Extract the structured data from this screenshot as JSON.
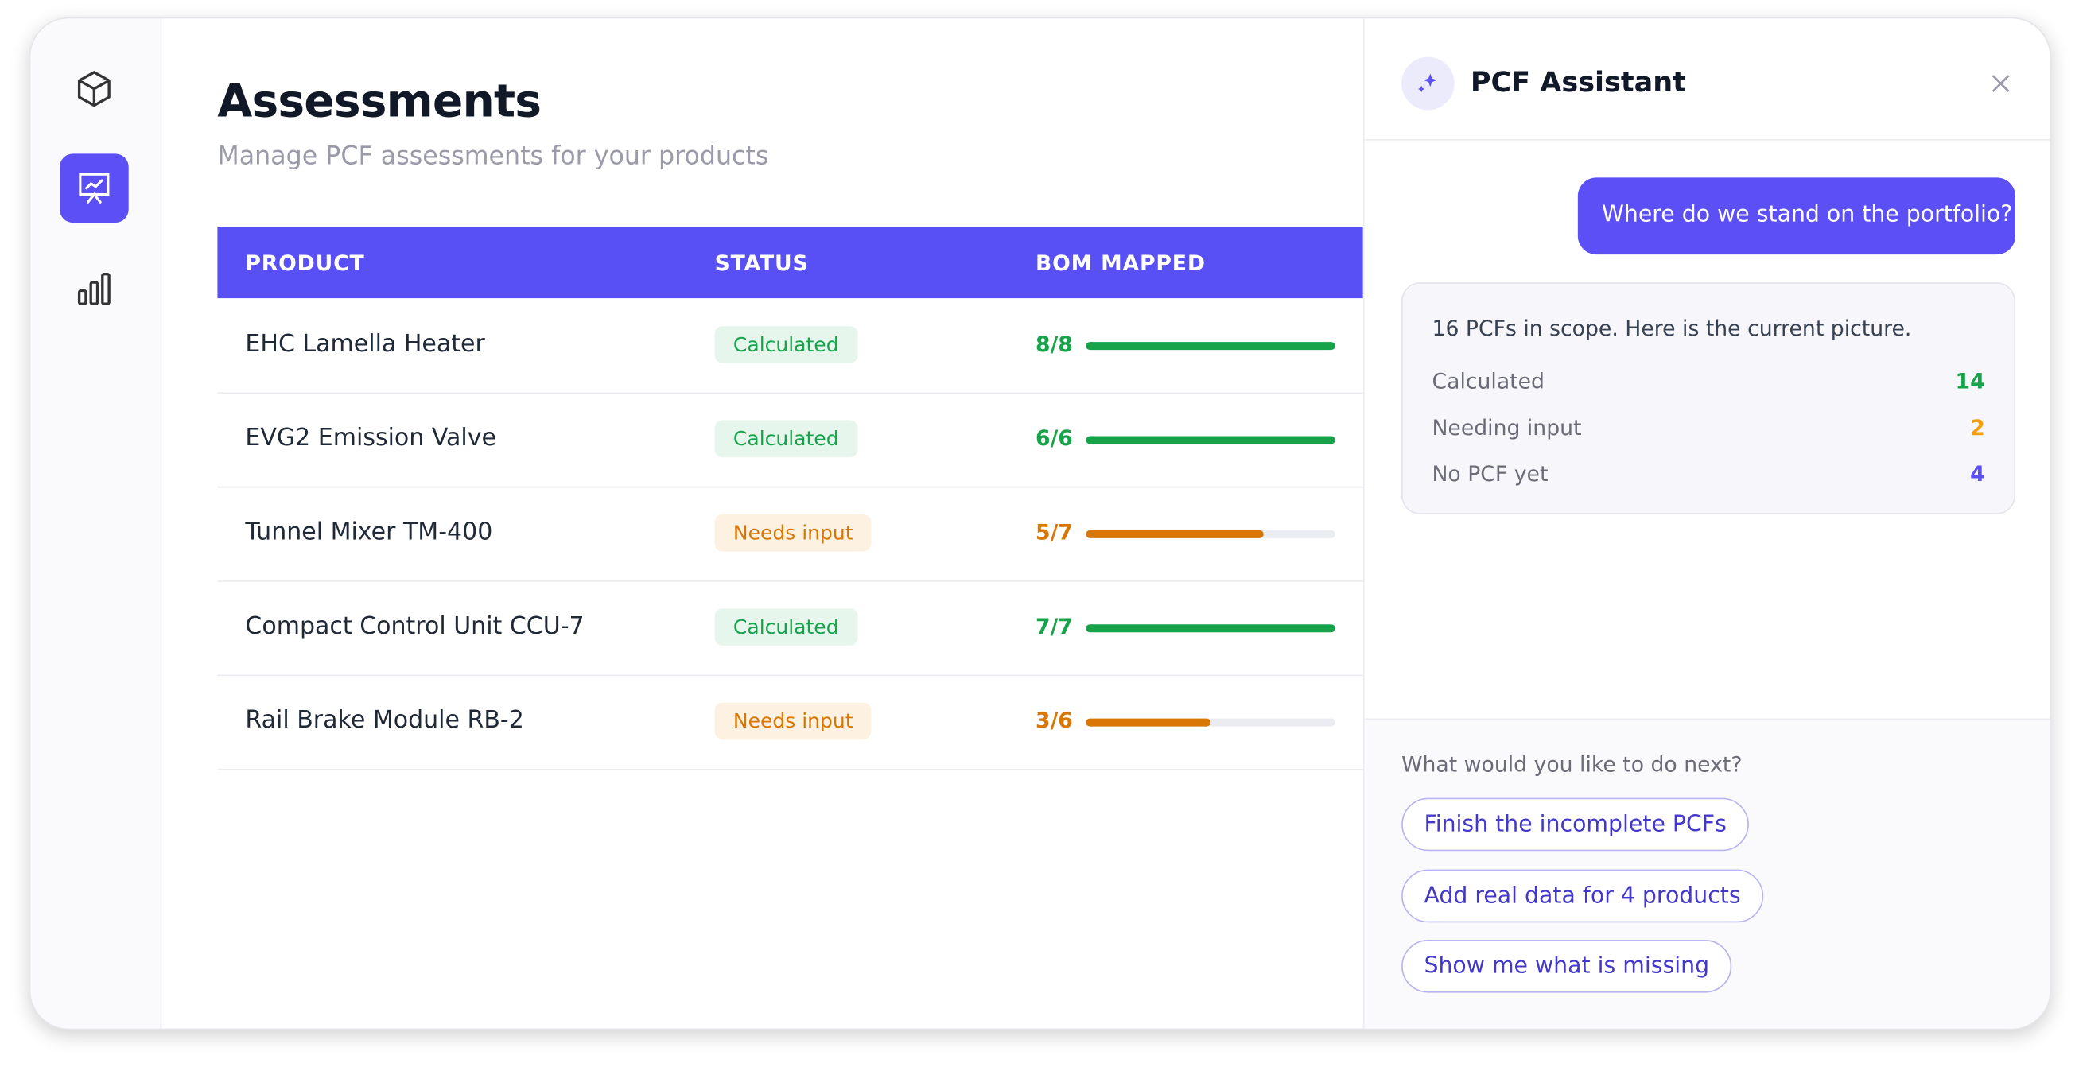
{
  "page": {
    "title": "Assessments",
    "subtitle": "Manage PCF assessments for your products"
  },
  "table": {
    "columns": [
      "PRODUCT",
      "STATUS",
      "BOM MAPPED"
    ],
    "rows": [
      {
        "product": "EHC Lamella Heater",
        "status": "Calculated",
        "bom": "8/8",
        "color": "#16a34a",
        "badge": "#e6f6ec"
      },
      {
        "product": "EVG2 Emission Valve",
        "status": "Calculated",
        "bom": "6/6",
        "color": "#16a34a",
        "badge": "#e6f6ec"
      },
      {
        "product": "Tunnel Mixer TM-400",
        "status": "Needs input",
        "bom": "5/7",
        "color": "#d97706",
        "badge": "#fdf1e2"
      },
      {
        "product": "Compact Control Unit CCU-7",
        "status": "Calculated",
        "bom": "7/7",
        "color": "#16a34a",
        "badge": "#e6f6ec"
      },
      {
        "product": "Rail Brake Module RB-2",
        "status": "Needs input",
        "bom": "3/6",
        "color": "#d97706",
        "badge": "#fdf1e2"
      }
    ]
  },
  "assistant": {
    "title": "PCF Assistant",
    "user_message": "Where do we stand on the portfolio?",
    "reply": {
      "intro": "16 PCFs in scope. Here is the current picture.",
      "stats": [
        {
          "label": "Calculated",
          "value": 14,
          "color": "#16a34a"
        },
        {
          "label": "Needing input",
          "value": 2,
          "color": "#f59e0b"
        },
        {
          "label": "No PCF yet",
          "value": 4,
          "color": "#5b4ff5"
        }
      ]
    },
    "prompt": "What would you like to do next?",
    "suggestions": [
      "Finish the incomplete PCFs",
      "Add real data for 4 products",
      "Show me what is missing"
    ]
  }
}
